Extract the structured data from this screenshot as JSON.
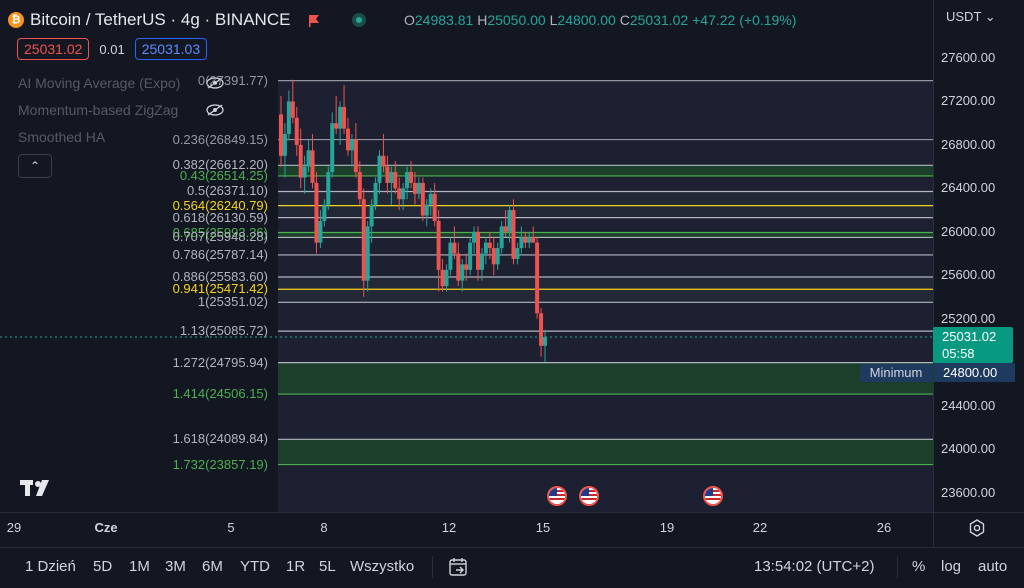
{
  "header": {
    "symbol_icon_text": "₿",
    "title": "Bitcoin / TetherUS · 4g · BINANCE",
    "ohlc": {
      "o_label": "O",
      "o": "24983.81",
      "h_label": "H",
      "h": "25050.00",
      "l_label": "L",
      "l": "24800.00",
      "c_label": "C",
      "c": "25031.02",
      "change": "+47.22 (+0.19%)"
    },
    "currency": "USDT",
    "currency_chevron": "⌄"
  },
  "trade": {
    "sell": "25031.02",
    "spread": "0.01",
    "buy": "25031.03"
  },
  "indicators": [
    "AI Moving Average (Expo)",
    "Momentum-based ZigZag",
    "Smoothed HA"
  ],
  "collapse_icon": "⌃",
  "fib_levels": [
    {
      "label": "0(27391.77)",
      "price": 27391.77,
      "color": "#9598a1"
    },
    {
      "label": "0.236(26849.15)",
      "price": 26849.15,
      "color": "#9598a1"
    },
    {
      "label": "0.382(26612.20)",
      "price": 26612.2,
      "color": "#b2b5be"
    },
    {
      "label": "0.43(26514.25)",
      "price": 26514.25,
      "color": "#4caf50"
    },
    {
      "label": "0.5(26371.10)",
      "price": 26371.1,
      "color": "#b2b5be"
    },
    {
      "label": "0.564(26240.79)",
      "price": 26240.79,
      "color": "#f7d41c"
    },
    {
      "label": "0.618(26130.59)",
      "price": 26130.59,
      "color": "#b2b5be"
    },
    {
      "label": "0.685(25993.36)",
      "price": 25993.36,
      "color": "#4caf50"
    },
    {
      "label": "0.707(25948.28)",
      "price": 25948.28,
      "color": "#b2b5be"
    },
    {
      "label": "0.786(25787.14)",
      "price": 25787.14,
      "color": "#b2b5be"
    },
    {
      "label": "0.886(25583.60)",
      "price": 25583.6,
      "color": "#b2b5be"
    },
    {
      "label": "0.941(25471.42)",
      "price": 25471.42,
      "color": "#f7d41c"
    },
    {
      "label": "1(25351.02)",
      "price": 25351.02,
      "color": "#b2b5be"
    },
    {
      "label": "1.13(25085.72)",
      "price": 25085.72,
      "color": "#b2b5be"
    },
    {
      "label": "1.272(24795.94)",
      "price": 24795.94,
      "color": "#b2b5be"
    },
    {
      "label": "1.414(24506.15)",
      "price": 24506.15,
      "color": "#4caf50"
    },
    {
      "label": "1.618(24089.84)",
      "price": 24089.84,
      "color": "#b2b5be"
    },
    {
      "label": "1.732(23857.19)",
      "price": 23857.19,
      "color": "#4caf50"
    }
  ],
  "y_axis": [
    "27600.00",
    "27200.00",
    "26800.00",
    "26400.00",
    "26000.00",
    "25600.00",
    "25200.00",
    "24400.00",
    "24000.00",
    "23600.00"
  ],
  "y_values": [
    27600,
    27200,
    26800,
    26400,
    26000,
    25600,
    25200,
    24400,
    24000,
    23600
  ],
  "x_axis": [
    "29",
    "Cze",
    "5",
    "8",
    "12",
    "15",
    "19",
    "22",
    "26"
  ],
  "current_price": {
    "price": "25031.02",
    "countdown": "05:58"
  },
  "minimum": {
    "label": "Minimum",
    "price": "24800.00"
  },
  "colors": {
    "up": "#26a69a",
    "down": "#ef5350",
    "gold": "#f7d41c",
    "green": "#4caf50"
  },
  "ranges": [
    "1 Dzień",
    "5D",
    "1M",
    "3M",
    "6M",
    "YTD",
    "1R",
    "5L",
    "Wszystko"
  ],
  "footer": {
    "time": "13:54:02 (UTC+2)",
    "percent": "%",
    "log": "log",
    "auto": "auto"
  },
  "candles": [
    [
      27080,
      27250,
      26600,
      26700
    ],
    [
      26700,
      27000,
      26500,
      26900
    ],
    [
      26900,
      27300,
      26850,
      27200
    ],
    [
      27200,
      27400,
      27000,
      27050
    ],
    [
      27050,
      27150,
      26700,
      26800
    ],
    [
      26800,
      26950,
      26400,
      26500
    ],
    [
      26500,
      26700,
      26350,
      26600
    ],
    [
      26600,
      26850,
      26550,
      26750
    ],
    [
      26750,
      26900,
      26400,
      26450
    ],
    [
      26450,
      26550,
      25800,
      25900
    ],
    [
      25900,
      26200,
      25850,
      26100
    ],
    [
      26100,
      26300,
      26050,
      26250
    ],
    [
      26250,
      26600,
      26200,
      26550
    ],
    [
      26550,
      27100,
      26500,
      27000
    ],
    [
      27000,
      27250,
      26900,
      26950
    ],
    [
      26950,
      27200,
      26800,
      27150
    ],
    [
      27150,
      27350,
      26900,
      26950
    ],
    [
      26950,
      27050,
      26700,
      26750
    ],
    [
      26750,
      26900,
      26600,
      26850
    ],
    [
      26850,
      27000,
      26500,
      26550
    ],
    [
      26550,
      26650,
      26250,
      26300
    ],
    [
      26300,
      26400,
      25400,
      25550
    ],
    [
      25550,
      26100,
      25450,
      26050
    ],
    [
      26050,
      26300,
      25900,
      26250
    ],
    [
      26250,
      26500,
      26200,
      26450
    ],
    [
      26450,
      26750,
      26350,
      26700
    ],
    [
      26700,
      26900,
      26550,
      26600
    ],
    [
      26600,
      26700,
      26350,
      26450
    ],
    [
      26450,
      26600,
      26250,
      26550
    ],
    [
      26550,
      26650,
      26350,
      26400
    ],
    [
      26400,
      26500,
      26200,
      26300
    ],
    [
      26300,
      26450,
      26200,
      26400
    ],
    [
      26400,
      26600,
      26300,
      26550
    ],
    [
      26550,
      26650,
      26400,
      26450
    ],
    [
      26450,
      26550,
      26250,
      26350
    ],
    [
      26350,
      26500,
      26300,
      26450
    ],
    [
      26450,
      26500,
      26100,
      26150
    ],
    [
      26150,
      26300,
      26050,
      26250
    ],
    [
      26250,
      26400,
      26150,
      26350
    ],
    [
      26350,
      26450,
      26050,
      26100
    ],
    [
      26100,
      26200,
      25450,
      25650
    ],
    [
      25650,
      25750,
      25450,
      25500
    ],
    [
      25500,
      25700,
      25450,
      25650
    ],
    [
      25650,
      25950,
      25600,
      25900
    ],
    [
      25900,
      26050,
      25750,
      25800
    ],
    [
      25800,
      25900,
      25500,
      25550
    ],
    [
      25550,
      25750,
      25450,
      25700
    ],
    [
      25700,
      25800,
      25550,
      25650
    ],
    [
      25650,
      25950,
      25600,
      25900
    ],
    [
      25900,
      26050,
      25800,
      26000
    ],
    [
      26000,
      26050,
      25550,
      25650
    ],
    [
      25650,
      25850,
      25550,
      25800
    ],
    [
      25800,
      25950,
      25700,
      25900
    ],
    [
      25900,
      26000,
      25750,
      25850
    ],
    [
      25850,
      25950,
      25600,
      25700
    ],
    [
      25700,
      25900,
      25650,
      25850
    ],
    [
      25850,
      26100,
      25800,
      26050
    ],
    [
      26050,
      26200,
      25950,
      26000
    ],
    [
      26000,
      26250,
      25900,
      26200
    ],
    [
      26200,
      26300,
      25700,
      25750
    ],
    [
      25750,
      25900,
      25700,
      25850
    ],
    [
      25850,
      26050,
      25800,
      25950
    ],
    [
      25950,
      26000,
      25850,
      25900
    ],
    [
      25900,
      26000,
      25850,
      25950
    ],
    [
      25950,
      26050,
      25900,
      25900
    ],
    [
      25900,
      25950,
      25200,
      25250
    ],
    [
      25250,
      25300,
      24850,
      24950
    ],
    [
      24950,
      25100,
      24800,
      25031.02
    ]
  ]
}
